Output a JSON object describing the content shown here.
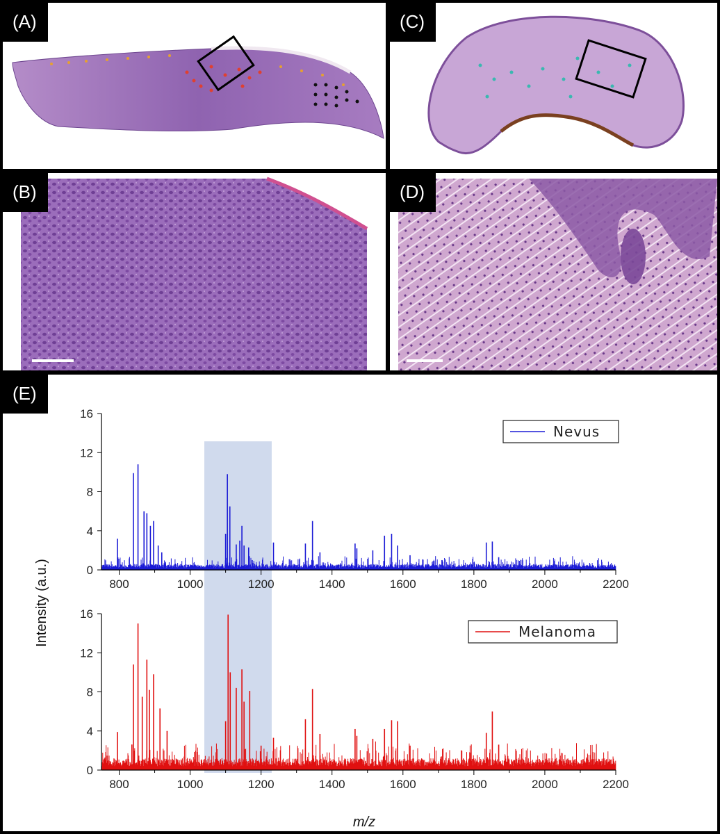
{
  "panels": {
    "A": {
      "label": "(A)"
    },
    "B": {
      "label": "(B)"
    },
    "C": {
      "label": "(C)"
    },
    "D": {
      "label": "(D)"
    },
    "E": {
      "label": "(E)"
    }
  },
  "colors": {
    "nevus": "#1b1bd6",
    "melanoma": "#e01010",
    "highlight": "#c8d4ea",
    "tissue_dark": "#8a5aa8",
    "tissue_light": "#c9a2d6"
  },
  "chart_data": [
    {
      "type": "line",
      "xlim": [
        750,
        2200
      ],
      "ylim": [
        0,
        16
      ],
      "xticks": [
        800,
        1000,
        1200,
        1400,
        1600,
        1800,
        2000,
        2200
      ],
      "yticks": [
        0,
        4,
        8,
        12,
        16
      ],
      "highlight_range": [
        1040,
        1230
      ],
      "series": [
        {
          "name": "Nevus",
          "baseline": 0.4,
          "peaks": [
            [
              795,
              3.2
            ],
            [
              840,
              9.9
            ],
            [
              853,
              10.8
            ],
            [
              870,
              6.0
            ],
            [
              878,
              5.8
            ],
            [
              888,
              4.5
            ],
            [
              897,
              5.0
            ],
            [
              910,
              2.5
            ],
            [
              920,
              1.8
            ],
            [
              1100,
              3.7
            ],
            [
              1105,
              9.8
            ],
            [
              1112,
              6.5
            ],
            [
              1130,
              2.6
            ],
            [
              1140,
              3.0
            ],
            [
              1146,
              4.5
            ],
            [
              1152,
              2.5
            ],
            [
              1165,
              2.3
            ],
            [
              1175,
              1.0
            ],
            [
              1235,
              2.8
            ],
            [
              1325,
              2.7
            ],
            [
              1345,
              5.0
            ],
            [
              1366,
              1.8
            ],
            [
              1465,
              2.7
            ],
            [
              1470,
              2.2
            ],
            [
              1515,
              2.0
            ],
            [
              1548,
              3.5
            ],
            [
              1568,
              3.7
            ],
            [
              1585,
              2.5
            ],
            [
              1620,
              1.5
            ],
            [
              1710,
              1.0
            ],
            [
              1835,
              2.8
            ],
            [
              1852,
              2.9
            ],
            [
              1870,
              1.3
            ],
            [
              2110,
              0.6
            ]
          ]
        },
        {
          "name": "Melanoma",
          "baseline": 0.8,
          "peaks": [
            [
              795,
              3.9
            ],
            [
              840,
              10.8
            ],
            [
              853,
              15.0
            ],
            [
              865,
              7.5
            ],
            [
              878,
              11.3
            ],
            [
              885,
              8.2
            ],
            [
              897,
              9.8
            ],
            [
              915,
              6.3
            ],
            [
              935,
              4.0
            ],
            [
              1100,
              5.0
            ],
            [
              1107,
              15.9
            ],
            [
              1113,
              10.0
            ],
            [
              1130,
              8.4
            ],
            [
              1146,
              10.3
            ],
            [
              1152,
              7.0
            ],
            [
              1168,
              8.1
            ],
            [
              1200,
              2.5
            ],
            [
              1235,
              3.3
            ],
            [
              1325,
              5.2
            ],
            [
              1345,
              8.3
            ],
            [
              1366,
              3.7
            ],
            [
              1465,
              4.2
            ],
            [
              1470,
              3.5
            ],
            [
              1515,
              3.2
            ],
            [
              1548,
              4.2
            ],
            [
              1568,
              5.1
            ],
            [
              1585,
              5.0
            ],
            [
              1620,
              2.5
            ],
            [
              1710,
              1.4
            ],
            [
              1835,
              3.8
            ],
            [
              1852,
              6.0
            ],
            [
              1870,
              2.6
            ],
            [
              2110,
              1.0
            ]
          ]
        }
      ],
      "ylabel": "Intensity (a.u.)",
      "xlabel": "m/z",
      "legend_position": "top-right"
    }
  ]
}
